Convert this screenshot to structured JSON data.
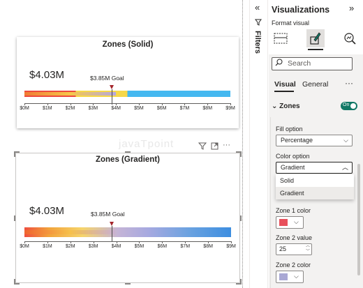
{
  "charts": [
    {
      "title": "Zones (Solid)",
      "kpi": "$4.03M",
      "goal": "$3.85M Goal",
      "ticks": [
        "$0M",
        "$1M",
        "$2M",
        "$3M",
        "$4M",
        "$5M",
        "$6M",
        "$7M",
        "$8M",
        "$9M"
      ]
    },
    {
      "title": "Zones (Gradient)",
      "kpi": "$4.03M",
      "goal": "$3.85M Goal",
      "ticks": [
        "$0M",
        "$1M",
        "$2M",
        "$3M",
        "$4M",
        "$5M",
        "$6M",
        "$7M",
        "$8M",
        "$9M"
      ]
    }
  ],
  "chart_data": [
    {
      "type": "bar",
      "title": "Zones (Solid)",
      "value": 4.03,
      "goal": 3.85,
      "xlim": [
        0,
        9
      ],
      "zones": [
        {
          "from": 0,
          "to": 2.25,
          "color": "#ee4a3c"
        },
        {
          "from": 2.25,
          "to": 4.5,
          "color": "#f6d84a"
        },
        {
          "from": 4.5,
          "to": 9,
          "color": "#44b8f0"
        }
      ]
    },
    {
      "type": "bar",
      "title": "Zones (Gradient)",
      "value": 4.03,
      "goal": 3.85,
      "xlim": [
        0,
        9
      ]
    }
  ],
  "filters_label": "Filters",
  "viz": {
    "title": "Visualizations",
    "format_visual": "Format visual",
    "search_placeholder": "Search",
    "tab_visual": "Visual",
    "tab_general": "General",
    "section": "Zones",
    "toggle": "On",
    "fill_option_label": "Fill option",
    "fill_option_value": "Percentage",
    "color_option_label": "Color option",
    "color_option_value": "Gradient",
    "color_options": [
      "Solid",
      "Gradient"
    ],
    "zone1_color_label": "Zone 1 color",
    "zone1_color": "#e8505b",
    "zone2_value_label": "Zone 2 value",
    "zone2_value": "25",
    "zone2_color_label": "Zone 2 color",
    "zone2_color": "#a9a8d4"
  },
  "watermark": "javaTpoint"
}
